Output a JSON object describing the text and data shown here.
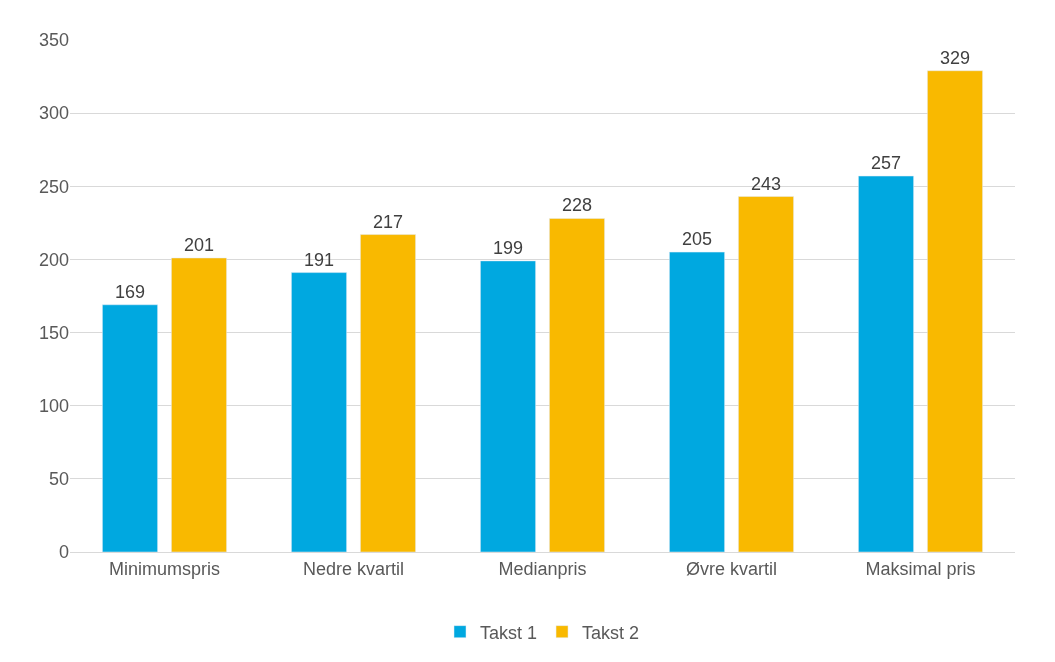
{
  "chart_data": {
    "type": "bar",
    "categories": [
      "Minimumspris",
      "Nedre kvartil",
      "Medianpris",
      "Øvre kvartil",
      "Maksimal pris"
    ],
    "series": [
      {
        "name": "Takst 1",
        "color": "#00a8e0",
        "values": [
          169,
          191,
          199,
          205,
          257
        ]
      },
      {
        "name": "Takst 2",
        "color": "#f9b900",
        "values": [
          201,
          217,
          228,
          243,
          329
        ]
      }
    ],
    "ylim": [
      0,
      350
    ],
    "yticks": [
      0,
      50,
      100,
      150,
      200,
      250,
      300,
      350
    ],
    "grid": "y",
    "legend": "bottom",
    "data_labels": true
  }
}
